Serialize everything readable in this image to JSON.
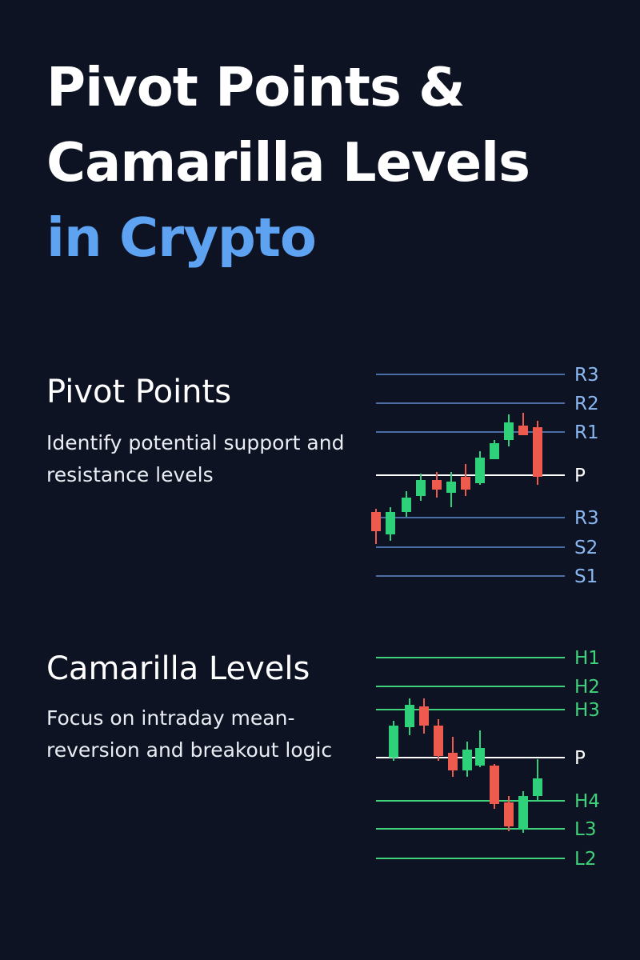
{
  "title": {
    "line1": "Pivot Points &",
    "line2": "Camarilla Levels",
    "line3": "in Crypto"
  },
  "colors": {
    "background": "#0d1323",
    "accent": "#5ea2f2",
    "pivot_level_line": "#4a6da5",
    "pivot_level_label": "#8ab8f2",
    "camarilla_level": "#3fd27a",
    "pivot_line": "#ffffff",
    "bull_candle": "#2fd07a",
    "bear_candle": "#ef5a4e"
  },
  "pivot_section": {
    "heading": "Pivot Points",
    "description": "Identify potential support and resistance levels",
    "levels": [
      {
        "label": "R3",
        "kind": "level"
      },
      {
        "label": "R2",
        "kind": "level"
      },
      {
        "label": "R1",
        "kind": "level"
      },
      {
        "label": "P",
        "kind": "pivot"
      },
      {
        "label": "R3",
        "kind": "level"
      },
      {
        "label": "S2",
        "kind": "level"
      },
      {
        "label": "S1",
        "kind": "level"
      }
    ]
  },
  "camarilla_section": {
    "heading": "Camarilla Levels",
    "description": "Focus on intraday mean-reversion and breakout logic",
    "levels": [
      {
        "label": "H1",
        "kind": "level"
      },
      {
        "label": "H2",
        "kind": "level"
      },
      {
        "label": "H3",
        "kind": "level"
      },
      {
        "label": "P",
        "kind": "pivot"
      },
      {
        "label": "H4",
        "kind": "level"
      },
      {
        "label": "L3",
        "kind": "level"
      },
      {
        "label": "L2",
        "kind": "level"
      }
    ]
  }
}
